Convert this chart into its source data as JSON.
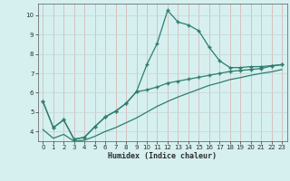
{
  "xlabel": "Humidex (Indice chaleur)",
  "background_color": "#d6f0f0",
  "grid_color": "#c0dede",
  "line_color": "#2d7d6e",
  "xlim": [
    -0.5,
    23.5
  ],
  "ylim": [
    3.5,
    10.6
  ],
  "xticks": [
    0,
    1,
    2,
    3,
    4,
    5,
    6,
    7,
    8,
    9,
    10,
    11,
    12,
    13,
    14,
    15,
    16,
    17,
    18,
    19,
    20,
    21,
    22,
    23
  ],
  "yticks": [
    4,
    5,
    6,
    7,
    8,
    9,
    10
  ],
  "series1_x": [
    0,
    1,
    2,
    3,
    4,
    5,
    6,
    7,
    8,
    9,
    10,
    11,
    12,
    13,
    14,
    15,
    16,
    17,
    18,
    19,
    20,
    21,
    22,
    23
  ],
  "series1_y": [
    5.55,
    4.2,
    4.6,
    3.6,
    3.7,
    4.25,
    4.75,
    5.05,
    5.45,
    6.05,
    7.45,
    8.55,
    10.25,
    9.65,
    9.5,
    9.2,
    8.35,
    7.65,
    7.3,
    7.3,
    7.35,
    7.35,
    7.4,
    7.45
  ],
  "series2_x": [
    0,
    1,
    2,
    3,
    4,
    5,
    6,
    7,
    8,
    9,
    10,
    11,
    12,
    13,
    14,
    15,
    16,
    17,
    18,
    19,
    20,
    21,
    22,
    23
  ],
  "series2_y": [
    5.55,
    4.2,
    4.6,
    3.6,
    3.7,
    4.25,
    4.75,
    5.05,
    5.45,
    6.05,
    6.15,
    6.3,
    6.5,
    6.6,
    6.7,
    6.8,
    6.9,
    7.0,
    7.1,
    7.15,
    7.2,
    7.25,
    7.38,
    7.45
  ],
  "series3_x": [
    0,
    1,
    2,
    3,
    4,
    5,
    6,
    7,
    8,
    9,
    10,
    11,
    12,
    13,
    14,
    15,
    16,
    17,
    18,
    19,
    20,
    21,
    22,
    23
  ],
  "series3_y": [
    4.1,
    3.65,
    3.85,
    3.5,
    3.55,
    3.75,
    4.0,
    4.2,
    4.45,
    4.7,
    5.0,
    5.3,
    5.55,
    5.78,
    5.98,
    6.18,
    6.38,
    6.52,
    6.68,
    6.78,
    6.9,
    7.0,
    7.08,
    7.2
  ]
}
